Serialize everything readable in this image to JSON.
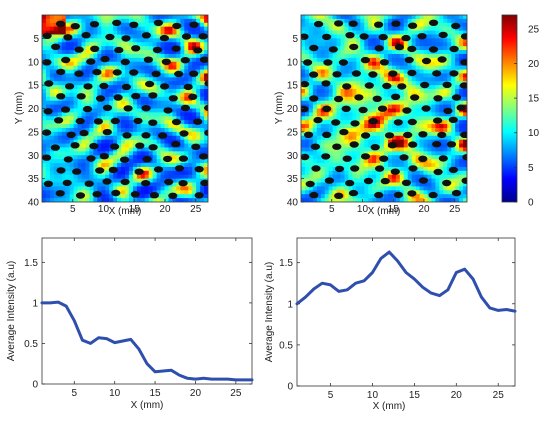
{
  "colors": {
    "line": "#2f4fae",
    "colormap": [
      "#00008f",
      "#0000ff",
      "#0080ff",
      "#00ffff",
      "#80ff80",
      "#ffff00",
      "#ff8000",
      "#ff0000",
      "#800000"
    ]
  },
  "chart_data": [
    {
      "type": "heatmap",
      "panel": "top-left",
      "xlabel": "X (mm)",
      "ylabel": "Y (mm)",
      "xlim": [
        0,
        27
      ],
      "ylim": [
        0,
        40
      ],
      "xticks": [
        5,
        10,
        15,
        20,
        25
      ],
      "yticks": [
        5,
        10,
        15,
        20,
        25,
        30,
        35,
        40
      ],
      "y_reversed": true,
      "overlay": "black elliptical dots (holes) over intensity field",
      "colorbar": false
    },
    {
      "type": "heatmap",
      "panel": "top-right",
      "xlabel": "X (mm)",
      "ylabel": "Y (mm)",
      "xlim": [
        0,
        27
      ],
      "ylim": [
        0,
        40
      ],
      "xticks": [
        5,
        10,
        15,
        20,
        25
      ],
      "yticks": [
        5,
        10,
        15,
        20,
        25,
        30,
        35,
        40
      ],
      "y_reversed": true,
      "overlay": "black elliptical dots (holes) over intensity field",
      "colorbar": true,
      "colorbar_range": [
        0,
        27
      ],
      "colorbar_ticks": [
        0,
        5,
        10,
        15,
        20,
        25
      ]
    },
    {
      "type": "line",
      "panel": "bottom-left",
      "xlabel": "X (mm)",
      "ylabel": "Average Intensity (a.u)",
      "xlim": [
        1,
        27
      ],
      "ylim": [
        0,
        1.8
      ],
      "xticks": [
        5,
        10,
        15,
        20,
        25
      ],
      "yticks": [
        0,
        0.5,
        1,
        1.5
      ],
      "series": [
        {
          "x": [
            1,
            2,
            3,
            4,
            5,
            6,
            7,
            8,
            9,
            10,
            11,
            12,
            13,
            14,
            15,
            16,
            17,
            18,
            19,
            20,
            21,
            22,
            23,
            24,
            25,
            26,
            27
          ],
          "values": [
            1.0,
            1.0,
            1.01,
            0.96,
            0.78,
            0.54,
            0.5,
            0.57,
            0.56,
            0.51,
            0.53,
            0.55,
            0.43,
            0.25,
            0.15,
            0.16,
            0.17,
            0.11,
            0.07,
            0.06,
            0.07,
            0.06,
            0.06,
            0.06,
            0.05,
            0.05,
            0.05
          ]
        }
      ]
    },
    {
      "type": "line",
      "panel": "bottom-right",
      "xlabel": "X (mm)",
      "ylabel": "Average Intensity (a.u)",
      "xlim": [
        1,
        27
      ],
      "ylim": [
        0,
        1.8
      ],
      "xticks": [
        5,
        10,
        15,
        20,
        25
      ],
      "yticks": [
        0,
        0.5,
        1,
        1.5
      ],
      "series": [
        {
          "x": [
            1,
            2,
            3,
            4,
            5,
            6,
            7,
            8,
            9,
            10,
            11,
            12,
            13,
            14,
            15,
            16,
            17,
            18,
            19,
            20,
            21,
            22,
            23,
            24,
            25,
            26,
            27
          ],
          "values": [
            1.0,
            1.08,
            1.18,
            1.25,
            1.23,
            1.15,
            1.17,
            1.25,
            1.28,
            1.38,
            1.55,
            1.63,
            1.52,
            1.38,
            1.3,
            1.2,
            1.13,
            1.1,
            1.17,
            1.38,
            1.42,
            1.3,
            1.08,
            0.95,
            0.92,
            0.93,
            0.91
          ]
        }
      ]
    }
  ]
}
